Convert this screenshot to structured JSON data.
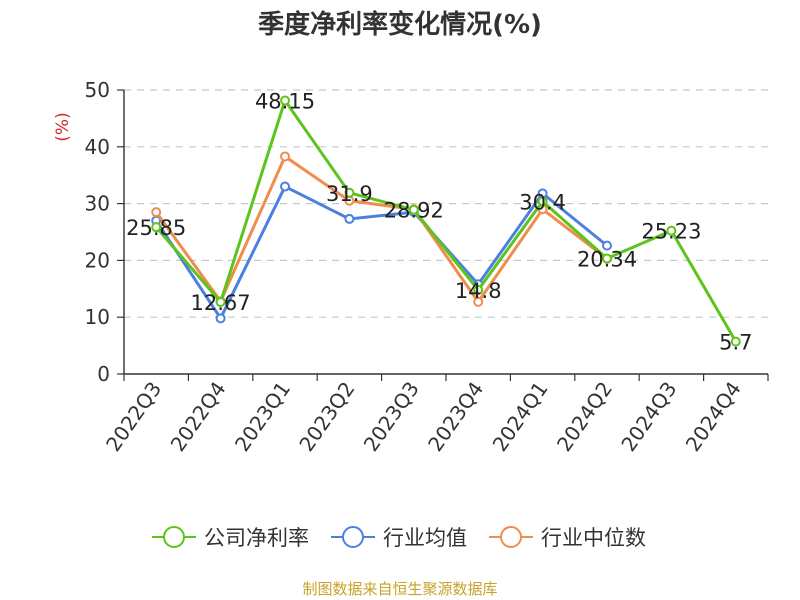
{
  "chart_data": {
    "type": "line",
    "title": "季度净利率变化情况(%)",
    "ylabel": "(%)",
    "xlabel": "",
    "ylim": [
      0,
      50
    ],
    "yticks": [
      0,
      10,
      20,
      30,
      40,
      50
    ],
    "grid": true,
    "legend_position": "bottom",
    "categories": [
      "2022Q3",
      "2022Q4",
      "2023Q1",
      "2023Q2",
      "2023Q3",
      "2023Q4",
      "2024Q1",
      "2024Q2",
      "2024Q3",
      "2024Q4"
    ],
    "series": [
      {
        "name": "公司净利率",
        "color": "#5cc41c",
        "values": [
          25.85,
          12.67,
          48.15,
          31.9,
          28.92,
          14.8,
          30.4,
          20.34,
          25.23,
          5.7
        ],
        "labels": [
          "25.85",
          "12.67",
          "48.15",
          "31.9",
          "28.92",
          "14.8",
          "30.4",
          "20.34",
          "25.23",
          "5.7"
        ]
      },
      {
        "name": "行业均值",
        "color": "#4b7fe0",
        "values": [
          27.0,
          9.8,
          33.0,
          27.3,
          28.5,
          15.8,
          31.8,
          22.6,
          null,
          null
        ]
      },
      {
        "name": "行业中位数",
        "color": "#f08c4c",
        "values": [
          28.5,
          12.8,
          38.3,
          30.5,
          29.0,
          12.7,
          29.0,
          20.3,
          null,
          null
        ]
      }
    ]
  },
  "footer": {
    "source": "制图数据来自恒生聚源数据库"
  }
}
